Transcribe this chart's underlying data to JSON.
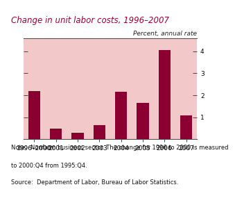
{
  "title": "Change in unit labor costs, 1996–2007",
  "ylabel_text": "Percent, annual rate",
  "categories": [
    "1996–2000",
    "2001",
    "2002",
    "2003",
    "2004",
    "2005",
    "2006",
    "2007"
  ],
  "values": [
    2.2,
    0.5,
    0.3,
    0.65,
    2.15,
    1.65,
    4.05,
    1.1
  ],
  "bar_color": "#8B0030",
  "background_color": "#F2C8C8",
  "title_area_color": "#FFFFFF",
  "title_color": "#9B0030",
  "ylim": [
    0,
    4.6
  ],
  "yticks": [
    1,
    2,
    3,
    4
  ],
  "note_line1": "Note:  Nonfarm business sector. The change for 1996 to 2000 is measured",
  "note_line2": "to 2000:Q4 from 1995:Q4.",
  "note_line3": "Source:  Department of Labor, Bureau of Labor Statistics.",
  "title_fontsize": 8.5,
  "axis_fontsize": 6.5,
  "note_fontsize": 6.0
}
